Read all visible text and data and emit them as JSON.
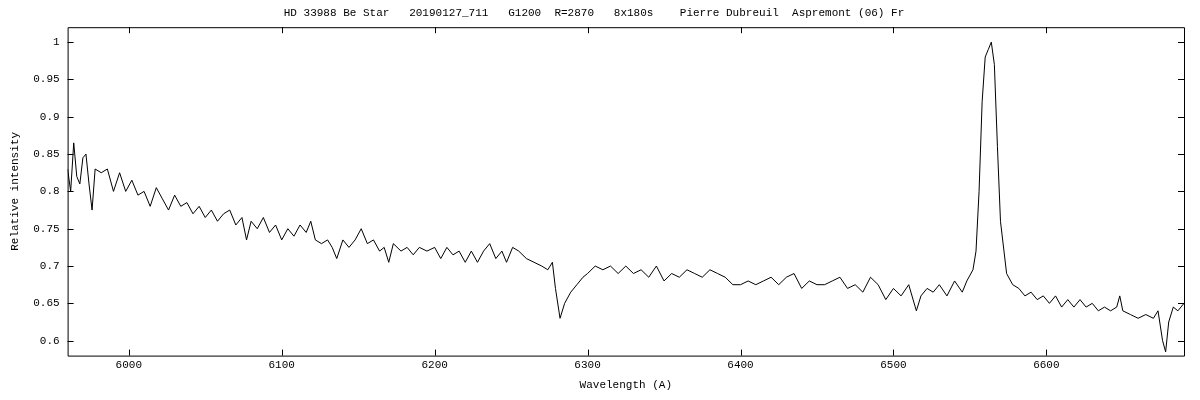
{
  "chart_data": {
    "type": "line",
    "title": "HD 33988 Be Star   20190127_711   G1200  R=2870   8x180s    Pierre Dubreuil  Aspremont (06) Fr",
    "xlabel": "Wavelength (A)",
    "ylabel": "Relative intensity",
    "xlim": [
      5960,
      6690
    ],
    "xticks": [
      6000,
      6100,
      6200,
      6300,
      6400,
      6500,
      6600
    ],
    "ylim": [
      0.58,
      1.02
    ],
    "yticks": [
      0.6,
      0.65,
      0.7,
      0.75,
      0.8,
      0.85,
      0.9,
      0.95,
      1
    ],
    "series": [
      {
        "color": "#000000",
        "x": [
          5960,
          5962,
          5964,
          5966,
          5968,
          5970,
          5972,
          5974,
          5976,
          5978,
          5982,
          5986,
          5990,
          5994,
          5998,
          6002,
          6006,
          6010,
          6014,
          6018,
          6022,
          6026,
          6030,
          6034,
          6038,
          6042,
          6046,
          6050,
          6054,
          6058,
          6062,
          6066,
          6070,
          6074,
          6077,
          6080,
          6084,
          6088,
          6092,
          6096,
          6100,
          6104,
          6108,
          6112,
          6116,
          6119,
          6122,
          6126,
          6130,
          6133,
          6136,
          6140,
          6144,
          6148,
          6152,
          6156,
          6160,
          6164,
          6167,
          6170,
          6173,
          6178,
          6182,
          6186,
          6190,
          6195,
          6200,
          6204,
          6208,
          6212,
          6216,
          6220,
          6224,
          6228,
          6232,
          6236,
          6240,
          6244,
          6247,
          6251,
          6255,
          6260,
          6265,
          6270,
          6274,
          6277,
          6279,
          6282,
          6285,
          6289,
          6293,
          6297,
          6300,
          6305,
          6310,
          6315,
          6320,
          6325,
          6330,
          6335,
          6340,
          6345,
          6350,
          6355,
          6360,
          6365,
          6370,
          6375,
          6380,
          6385,
          6390,
          6395,
          6400,
          6405,
          6410,
          6415,
          6420,
          6425,
          6430,
          6435,
          6440,
          6445,
          6450,
          6455,
          6460,
          6465,
          6470,
          6475,
          6480,
          6485,
          6490,
          6495,
          6500,
          6505,
          6510,
          6515,
          6518,
          6522,
          6526,
          6530,
          6535,
          6540,
          6545,
          6548,
          6552,
          6554,
          6556,
          6558,
          6560,
          6562,
          6564,
          6566,
          6568,
          6570,
          6574,
          6578,
          6582,
          6586,
          6590,
          6594,
          6598,
          6602,
          6606,
          6610,
          6614,
          6618,
          6622,
          6626,
          6630,
          6634,
          6638,
          6642,
          6646,
          6648,
          6650,
          6655,
          6660,
          6665,
          6670,
          6673,
          6676,
          6678,
          6680,
          6683,
          6686,
          6690
        ],
        "values": [
          0.83,
          0.8,
          0.865,
          0.82,
          0.81,
          0.845,
          0.85,
          0.81,
          0.775,
          0.83,
          0.825,
          0.83,
          0.8,
          0.825,
          0.8,
          0.815,
          0.795,
          0.8,
          0.78,
          0.805,
          0.79,
          0.775,
          0.795,
          0.78,
          0.785,
          0.77,
          0.78,
          0.765,
          0.775,
          0.76,
          0.77,
          0.775,
          0.755,
          0.765,
          0.735,
          0.76,
          0.75,
          0.765,
          0.745,
          0.755,
          0.735,
          0.75,
          0.74,
          0.755,
          0.745,
          0.76,
          0.735,
          0.73,
          0.735,
          0.725,
          0.71,
          0.735,
          0.725,
          0.735,
          0.75,
          0.73,
          0.735,
          0.72,
          0.725,
          0.705,
          0.73,
          0.72,
          0.725,
          0.715,
          0.725,
          0.72,
          0.725,
          0.71,
          0.725,
          0.715,
          0.72,
          0.705,
          0.72,
          0.705,
          0.72,
          0.73,
          0.71,
          0.72,
          0.705,
          0.725,
          0.72,
          0.71,
          0.705,
          0.7,
          0.695,
          0.705,
          0.67,
          0.63,
          0.65,
          0.665,
          0.675,
          0.685,
          0.69,
          0.7,
          0.695,
          0.7,
          0.69,
          0.7,
          0.69,
          0.695,
          0.685,
          0.7,
          0.68,
          0.69,
          0.685,
          0.695,
          0.69,
          0.685,
          0.695,
          0.69,
          0.685,
          0.675,
          0.675,
          0.68,
          0.675,
          0.68,
          0.685,
          0.675,
          0.685,
          0.69,
          0.67,
          0.68,
          0.675,
          0.675,
          0.68,
          0.685,
          0.67,
          0.675,
          0.665,
          0.685,
          0.675,
          0.655,
          0.67,
          0.66,
          0.675,
          0.64,
          0.66,
          0.67,
          0.665,
          0.675,
          0.66,
          0.68,
          0.665,
          0.68,
          0.695,
          0.72,
          0.8,
          0.92,
          0.98,
          0.99,
          1.0,
          0.97,
          0.86,
          0.76,
          0.69,
          0.675,
          0.67,
          0.66,
          0.665,
          0.655,
          0.66,
          0.65,
          0.66,
          0.645,
          0.655,
          0.645,
          0.655,
          0.645,
          0.65,
          0.64,
          0.645,
          0.64,
          0.645,
          0.66,
          0.64,
          0.635,
          0.63,
          0.635,
          0.63,
          0.64,
          0.6,
          0.585,
          0.625,
          0.645,
          0.64,
          0.65
        ]
      }
    ]
  }
}
